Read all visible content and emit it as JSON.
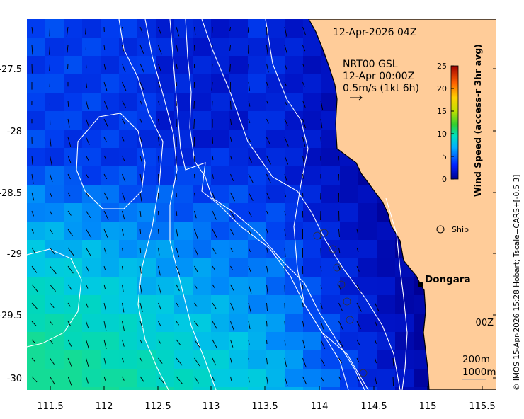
{
  "map": {
    "timestamp": "12-Apr-2026 04Z",
    "product_line1": "NRT00 GSL",
    "product_line2": "12-Apr 00:00Z",
    "product_line3": "0.5m/s (1kt 6h)",
    "ship_label": "Ship",
    "place_label": "Dongara",
    "contour_label_1": "200m",
    "contour_label_2": "1000m",
    "edge_fragment": "00Z",
    "credit": "© IMOS 15-Apr-2026 15:28 Hobart; Tscale=CARS+[-0.5 3]",
    "colorbar": {
      "label": "Wind Speed (access-r 3hr avg)",
      "ticks": [
        "25",
        "20",
        "15",
        "10",
        "5",
        "0"
      ],
      "min": 0,
      "max": 25
    },
    "x_ticks": [
      "111.5",
      "112",
      "112.5",
      "113",
      "113.5",
      "114",
      "114.5",
      "115",
      "115.5"
    ],
    "y_ticks": [
      "-27.5",
      "-28",
      "-28.5",
      "-29",
      "-29.5",
      "-30"
    ],
    "colors": {
      "land": "#ffcc99",
      "coast": "#000000",
      "contour": "#ffffff",
      "ship_marker": "#000000"
    }
  }
}
